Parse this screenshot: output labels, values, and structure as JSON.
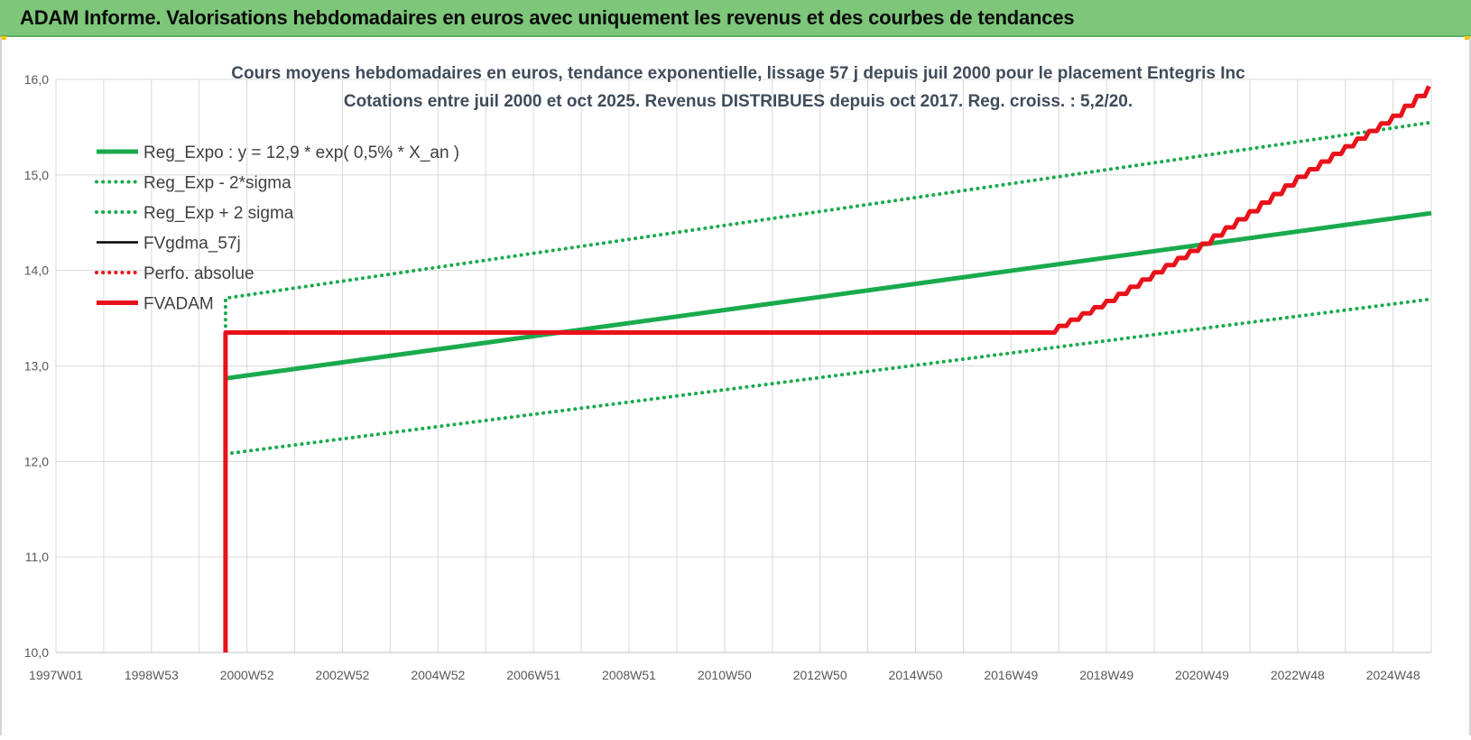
{
  "header": {
    "title": "ADAM Informe. Valorisations hebdomadaires en euros avec uniquement les revenus et des courbes de tendances"
  },
  "colors": {
    "banner": "#7dc67a",
    "green": "#1aaa4e",
    "red": "#e8121b",
    "black": "#000000",
    "grid": "#d9d9d9"
  },
  "chart_data": {
    "type": "line",
    "title": "Cours moyens hebdomadaires en euros, tendance exponentielle, lissage 57 j depuis juil 2000 pour le placement Entegris Inc",
    "subtitle": "Cotations entre juil 2000 et oct 2025. Revenus DISTRIBUES depuis oct 2017. Reg. croiss. : 5,2/20.",
    "xlabel": "",
    "ylabel": "",
    "ylim": [
      10,
      16
    ],
    "yticks": [
      "10,0",
      "11,0",
      "12,0",
      "13,0",
      "14,0",
      "15,0",
      "16,0"
    ],
    "xlim": [
      1997.0,
      2025.8
    ],
    "xticks": [
      {
        "x": 1997.0,
        "label": "1997W01"
      },
      {
        "x": 1999.0,
        "label": "1998W53"
      },
      {
        "x": 2001.0,
        "label": "2000W52"
      },
      {
        "x": 2003.0,
        "label": "2002W52"
      },
      {
        "x": 2005.0,
        "label": "2004W52"
      },
      {
        "x": 2007.0,
        "label": "2006W51"
      },
      {
        "x": 2009.0,
        "label": "2008W51"
      },
      {
        "x": 2011.0,
        "label": "2010W50"
      },
      {
        "x": 2013.0,
        "label": "2012W50"
      },
      {
        "x": 2015.0,
        "label": "2014W50"
      },
      {
        "x": 2017.0,
        "label": "2016W49"
      },
      {
        "x": 2019.0,
        "label": "2018W49"
      },
      {
        "x": 2021.0,
        "label": "2020W49"
      },
      {
        "x": 2023.0,
        "label": "2022W48"
      },
      {
        "x": 2025.0,
        "label": "2024W48"
      }
    ],
    "grid": true,
    "legend_position": "top-left",
    "series": [
      {
        "name": "Reg_Expo : y = 12,9 * exp( 0,5% *  X_an )",
        "style": "solid-thick",
        "color": "#1aaa4e",
        "x": [
          2000.55,
          2025.8
        ],
        "y": [
          12.87,
          14.6
        ]
      },
      {
        "name": "Reg_Exp - 2*sigma",
        "style": "dotted",
        "color": "#1aaa4e",
        "x": [
          2000.55,
          2025.8
        ],
        "y": [
          12.08,
          13.7
        ]
      },
      {
        "name": "Reg_Exp + 2 sigma",
        "style": "dotted",
        "color": "#1aaa4e",
        "x": [
          2000.55,
          2000.55,
          2025.8
        ],
        "y": [
          13.35,
          13.71,
          15.55
        ]
      },
      {
        "name": "FVgdma_57j",
        "style": "solid",
        "color": "#000000",
        "x": [],
        "y": []
      },
      {
        "name": "Perfo. absolue",
        "style": "dotted",
        "color": "#e8121b",
        "x": [],
        "y": []
      },
      {
        "name": "FVADAM",
        "style": "solid-thick-stepped",
        "color": "#e8121b",
        "x": [
          2000.55,
          2000.55,
          2017.75,
          2018.0,
          2019.0,
          2020.0,
          2021.0,
          2022.0,
          2023.0,
          2024.0,
          2025.0,
          2025.8
        ],
        "y": [
          10.0,
          13.35,
          13.35,
          13.42,
          13.68,
          13.98,
          14.28,
          14.62,
          14.98,
          15.3,
          15.62,
          15.95
        ]
      }
    ]
  }
}
